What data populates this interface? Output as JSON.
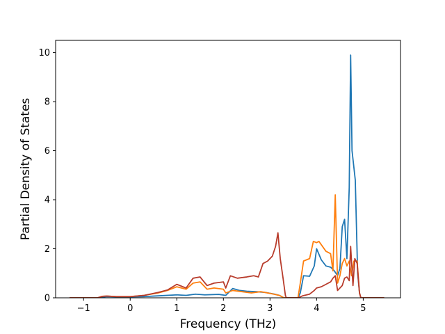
{
  "chart_data": {
    "type": "line",
    "title": "",
    "xlabel": "Frequency (THz)",
    "ylabel": "Partial Density of States",
    "xlim": [
      -1.6,
      5.8
    ],
    "ylim": [
      0,
      10.5
    ],
    "xticks": [
      -1,
      0,
      1,
      2,
      3,
      4,
      5
    ],
    "yticks": [
      0,
      2,
      4,
      6,
      8,
      10
    ],
    "grid": false,
    "legend": "none",
    "series": [
      {
        "color": "#1f77b4",
        "points": [
          [
            -1.3,
            0
          ],
          [
            -0.7,
            0
          ],
          [
            -0.6,
            0.03
          ],
          [
            -0.5,
            0.05
          ],
          [
            -0.3,
            0.04
          ],
          [
            0,
            0.04
          ],
          [
            0.3,
            0.05
          ],
          [
            0.6,
            0.08
          ],
          [
            1.0,
            0.12
          ],
          [
            1.2,
            0.1
          ],
          [
            1.4,
            0.15
          ],
          [
            1.6,
            0.12
          ],
          [
            1.9,
            0.14
          ],
          [
            2.05,
            0.1
          ],
          [
            2.2,
            0.38
          ],
          [
            2.35,
            0.3
          ],
          [
            2.5,
            0.27
          ],
          [
            2.7,
            0.25
          ],
          [
            2.9,
            0.22
          ],
          [
            3.1,
            0.15
          ],
          [
            3.2,
            0.1
          ],
          [
            3.3,
            0
          ],
          [
            3.6,
            0
          ],
          [
            3.65,
            0.2
          ],
          [
            3.72,
            0.9
          ],
          [
            3.85,
            0.88
          ],
          [
            3.95,
            1.3
          ],
          [
            4.0,
            2.0
          ],
          [
            4.1,
            1.55
          ],
          [
            4.2,
            1.3
          ],
          [
            4.3,
            1.25
          ],
          [
            4.38,
            1.1
          ],
          [
            4.45,
            0.9
          ],
          [
            4.5,
            1.2
          ],
          [
            4.55,
            2.9
          ],
          [
            4.6,
            3.2
          ],
          [
            4.65,
            1.6
          ],
          [
            4.7,
            4.5
          ],
          [
            4.73,
            9.9
          ],
          [
            4.76,
            6.0
          ],
          [
            4.83,
            4.8
          ],
          [
            4.88,
            1.0
          ],
          [
            4.92,
            0.2
          ],
          [
            4.95,
            0
          ],
          [
            5.45,
            0
          ]
        ]
      },
      {
        "color": "#ff7f0e",
        "points": [
          [
            -1.3,
            0
          ],
          [
            -0.7,
            0
          ],
          [
            -0.6,
            0.06
          ],
          [
            -0.5,
            0.07
          ],
          [
            -0.3,
            0.05
          ],
          [
            0,
            0.05
          ],
          [
            0.3,
            0.1
          ],
          [
            0.6,
            0.2
          ],
          [
            0.8,
            0.3
          ],
          [
            1.0,
            0.45
          ],
          [
            1.2,
            0.35
          ],
          [
            1.35,
            0.6
          ],
          [
            1.5,
            0.65
          ],
          [
            1.65,
            0.35
          ],
          [
            1.8,
            0.4
          ],
          [
            2.0,
            0.35
          ],
          [
            2.05,
            0.2
          ],
          [
            2.2,
            0.3
          ],
          [
            2.4,
            0.25
          ],
          [
            2.6,
            0.2
          ],
          [
            2.8,
            0.25
          ],
          [
            3.0,
            0.18
          ],
          [
            3.2,
            0.1
          ],
          [
            3.3,
            0
          ],
          [
            3.6,
            0
          ],
          [
            3.65,
            0.6
          ],
          [
            3.72,
            1.5
          ],
          [
            3.85,
            1.6
          ],
          [
            3.93,
            2.3
          ],
          [
            4.0,
            2.25
          ],
          [
            4.05,
            2.3
          ],
          [
            4.2,
            1.9
          ],
          [
            4.3,
            1.8
          ],
          [
            4.35,
            1.1
          ],
          [
            4.4,
            4.2
          ],
          [
            4.45,
            0.6
          ],
          [
            4.5,
            0.9
          ],
          [
            4.55,
            1.4
          ],
          [
            4.6,
            1.6
          ],
          [
            4.65,
            1.3
          ],
          [
            4.7,
            1.5
          ],
          [
            4.75,
            0.9
          ],
          [
            4.8,
            1.5
          ],
          [
            4.87,
            1.5
          ],
          [
            4.92,
            0.2
          ],
          [
            4.95,
            0
          ],
          [
            5.45,
            0
          ]
        ]
      },
      {
        "color": "#b83c2c",
        "points": [
          [
            -1.3,
            0
          ],
          [
            -0.7,
            0
          ],
          [
            -0.6,
            0.06
          ],
          [
            -0.5,
            0.07
          ],
          [
            -0.3,
            0.05
          ],
          [
            0,
            0.05
          ],
          [
            0.3,
            0.1
          ],
          [
            0.6,
            0.22
          ],
          [
            0.8,
            0.32
          ],
          [
            1.0,
            0.55
          ],
          [
            1.2,
            0.4
          ],
          [
            1.35,
            0.8
          ],
          [
            1.5,
            0.85
          ],
          [
            1.65,
            0.5
          ],
          [
            1.8,
            0.6
          ],
          [
            2.0,
            0.65
          ],
          [
            2.05,
            0.4
          ],
          [
            2.15,
            0.9
          ],
          [
            2.3,
            0.8
          ],
          [
            2.5,
            0.85
          ],
          [
            2.65,
            0.9
          ],
          [
            2.75,
            0.85
          ],
          [
            2.85,
            1.4
          ],
          [
            2.95,
            1.5
          ],
          [
            3.05,
            1.7
          ],
          [
            3.12,
            2.1
          ],
          [
            3.17,
            2.65
          ],
          [
            3.22,
            1.6
          ],
          [
            3.28,
            0.8
          ],
          [
            3.33,
            0.1
          ],
          [
            3.35,
            0
          ],
          [
            3.6,
            0
          ],
          [
            3.7,
            0.08
          ],
          [
            3.85,
            0.15
          ],
          [
            3.95,
            0.3
          ],
          [
            4.0,
            0.4
          ],
          [
            4.1,
            0.45
          ],
          [
            4.2,
            0.55
          ],
          [
            4.3,
            0.65
          ],
          [
            4.35,
            0.8
          ],
          [
            4.4,
            0.9
          ],
          [
            4.45,
            0.3
          ],
          [
            4.55,
            0.5
          ],
          [
            4.6,
            0.8
          ],
          [
            4.65,
            0.85
          ],
          [
            4.7,
            0.7
          ],
          [
            4.73,
            2.1
          ],
          [
            4.78,
            0.5
          ],
          [
            4.82,
            1.6
          ],
          [
            4.87,
            1.4
          ],
          [
            4.92,
            0.2
          ],
          [
            4.95,
            0
          ],
          [
            5.45,
            0
          ]
        ]
      }
    ]
  }
}
